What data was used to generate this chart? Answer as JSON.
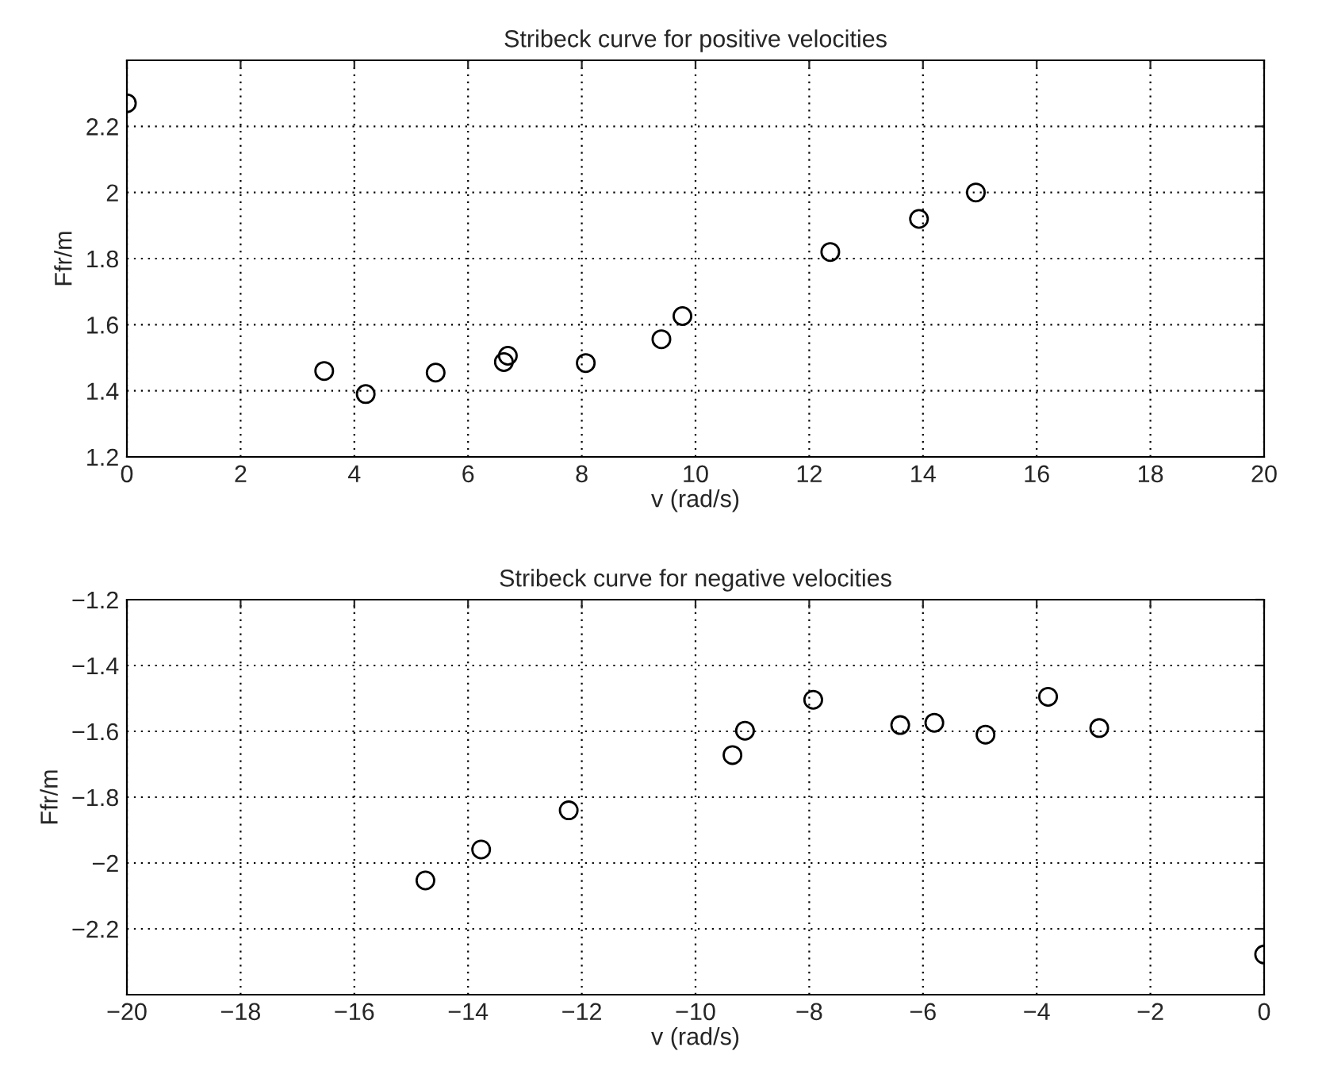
{
  "chart_data": [
    {
      "type": "scatter",
      "title": "Stribeck curve for positive velocities",
      "xlabel": "v (rad/s)",
      "ylabel": "Ffr/m",
      "marker": "circle",
      "grid": true,
      "xlim": [
        0,
        20
      ],
      "xticks": [
        0,
        2,
        4,
        6,
        8,
        10,
        12,
        14,
        16,
        18,
        20
      ],
      "ylim": [
        1.2,
        2.4
      ],
      "yticks": [
        1.2,
        1.4,
        1.6,
        1.8,
        2,
        2.2
      ],
      "series": [
        {
          "color": "#000000",
          "x": [
            0,
            3.47,
            4.2,
            5.43,
            6.63,
            6.7,
            8.07,
            9.4,
            9.77,
            12.37,
            13.93,
            14.93
          ],
          "values": [
            2.27,
            1.46,
            1.39,
            1.455,
            1.487,
            1.506,
            1.484,
            1.556,
            1.626,
            1.82,
            1.92,
            2.0
          ]
        }
      ]
    },
    {
      "type": "scatter",
      "title": "Stribeck curve for negative velocities",
      "xlabel": "v (rad/s)",
      "ylabel": "Ffr/m",
      "marker": "circle",
      "grid": true,
      "xlim": [
        -20,
        0
      ],
      "xticks": [
        -20,
        -18,
        -16,
        -14,
        -12,
        -10,
        -8,
        -6,
        -4,
        -2,
        0
      ],
      "ylim": [
        -2.4,
        -1.2
      ],
      "yticks": [
        -2.2,
        -2,
        -1.8,
        -1.6,
        -1.4,
        -1.2
      ],
      "series": [
        {
          "color": "#000000",
          "x": [
            -14.75,
            -13.77,
            -12.23,
            -9.35,
            -9.13,
            -7.93,
            -6.4,
            -5.8,
            -4.9,
            -3.8,
            -2.9,
            0
          ],
          "values": [
            -2.053,
            -1.959,
            -1.84,
            -1.672,
            -1.598,
            -1.504,
            -1.581,
            -1.574,
            -1.61,
            -1.495,
            -1.59,
            -2.278
          ]
        }
      ]
    }
  ]
}
